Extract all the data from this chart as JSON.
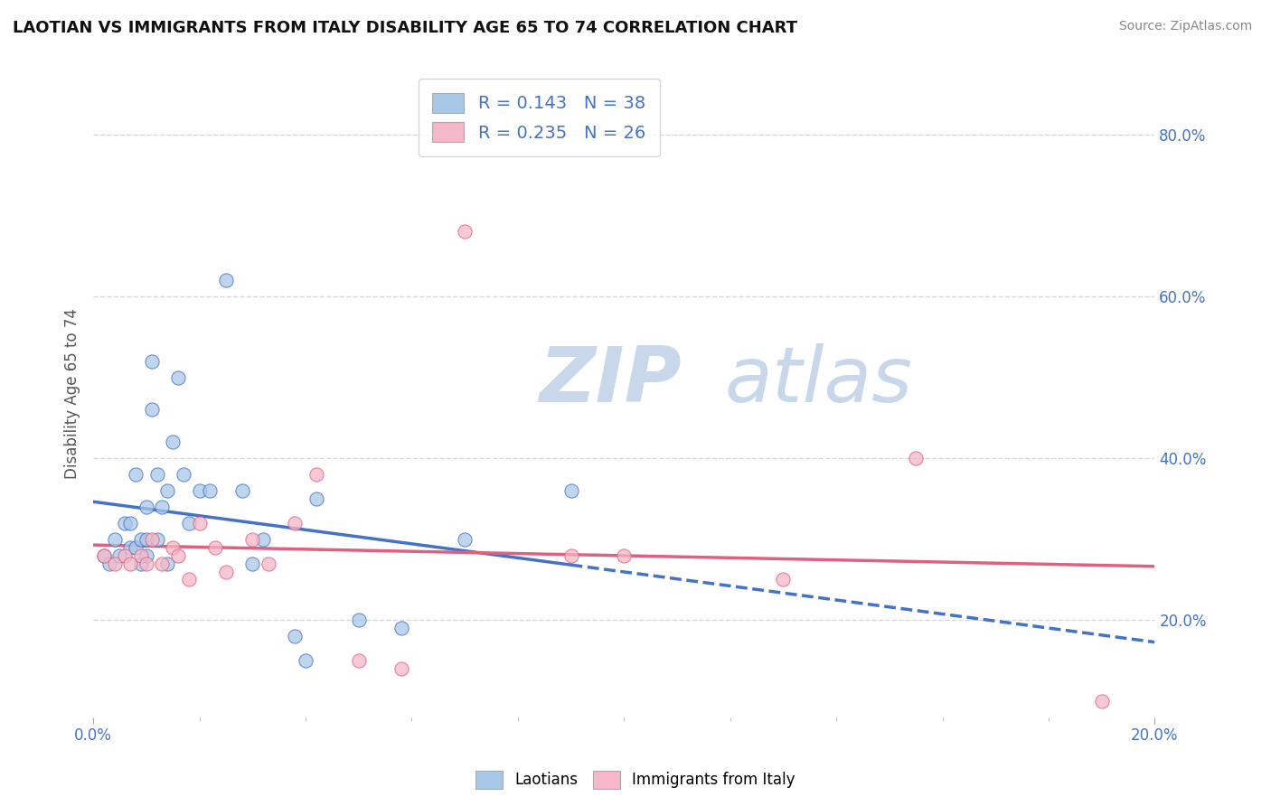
{
  "title": "LAOTIAN VS IMMIGRANTS FROM ITALY DISABILITY AGE 65 TO 74 CORRELATION CHART",
  "source": "Source: ZipAtlas.com",
  "ylabel": "Disability Age 65 to 74",
  "ylabel_right_vals": [
    0.2,
    0.4,
    0.6,
    0.8
  ],
  "xmin": 0.0,
  "xmax": 0.2,
  "ymin": 0.08,
  "ymax": 0.88,
  "legend1_R": "0.143",
  "legend1_N": "38",
  "legend2_R": "0.235",
  "legend2_N": "26",
  "color_blue": "#a8c8e8",
  "color_pink": "#f4b8c8",
  "color_blue_line": "#4472c4",
  "color_pink_line": "#e06080",
  "color_text_blue": "#4472c4",
  "watermark_color": "#d8e4f0",
  "background_color": "#ffffff",
  "grid_color": "#d8d8d8",
  "laotian_x": [
    0.002,
    0.003,
    0.004,
    0.005,
    0.006,
    0.007,
    0.007,
    0.008,
    0.008,
    0.009,
    0.009,
    0.01,
    0.01,
    0.01,
    0.011,
    0.011,
    0.012,
    0.012,
    0.013,
    0.014,
    0.014,
    0.015,
    0.016,
    0.017,
    0.018,
    0.02,
    0.022,
    0.025,
    0.028,
    0.03,
    0.032,
    0.038,
    0.04,
    0.042,
    0.05,
    0.058,
    0.07,
    0.09
  ],
  "laotian_y": [
    0.28,
    0.27,
    0.3,
    0.28,
    0.32,
    0.32,
    0.29,
    0.38,
    0.29,
    0.3,
    0.27,
    0.28,
    0.34,
    0.3,
    0.46,
    0.52,
    0.38,
    0.3,
    0.34,
    0.36,
    0.27,
    0.42,
    0.5,
    0.38,
    0.32,
    0.36,
    0.36,
    0.62,
    0.36,
    0.27,
    0.3,
    0.18,
    0.15,
    0.35,
    0.2,
    0.19,
    0.3,
    0.36
  ],
  "italy_x": [
    0.002,
    0.004,
    0.006,
    0.007,
    0.009,
    0.01,
    0.011,
    0.013,
    0.015,
    0.016,
    0.018,
    0.02,
    0.023,
    0.025,
    0.03,
    0.033,
    0.038,
    0.042,
    0.05,
    0.058,
    0.07,
    0.09,
    0.1,
    0.13,
    0.155,
    0.19
  ],
  "italy_y": [
    0.28,
    0.27,
    0.28,
    0.27,
    0.28,
    0.27,
    0.3,
    0.27,
    0.29,
    0.28,
    0.25,
    0.32,
    0.29,
    0.26,
    0.3,
    0.27,
    0.32,
    0.38,
    0.15,
    0.14,
    0.68,
    0.28,
    0.28,
    0.25,
    0.4,
    0.1
  ]
}
